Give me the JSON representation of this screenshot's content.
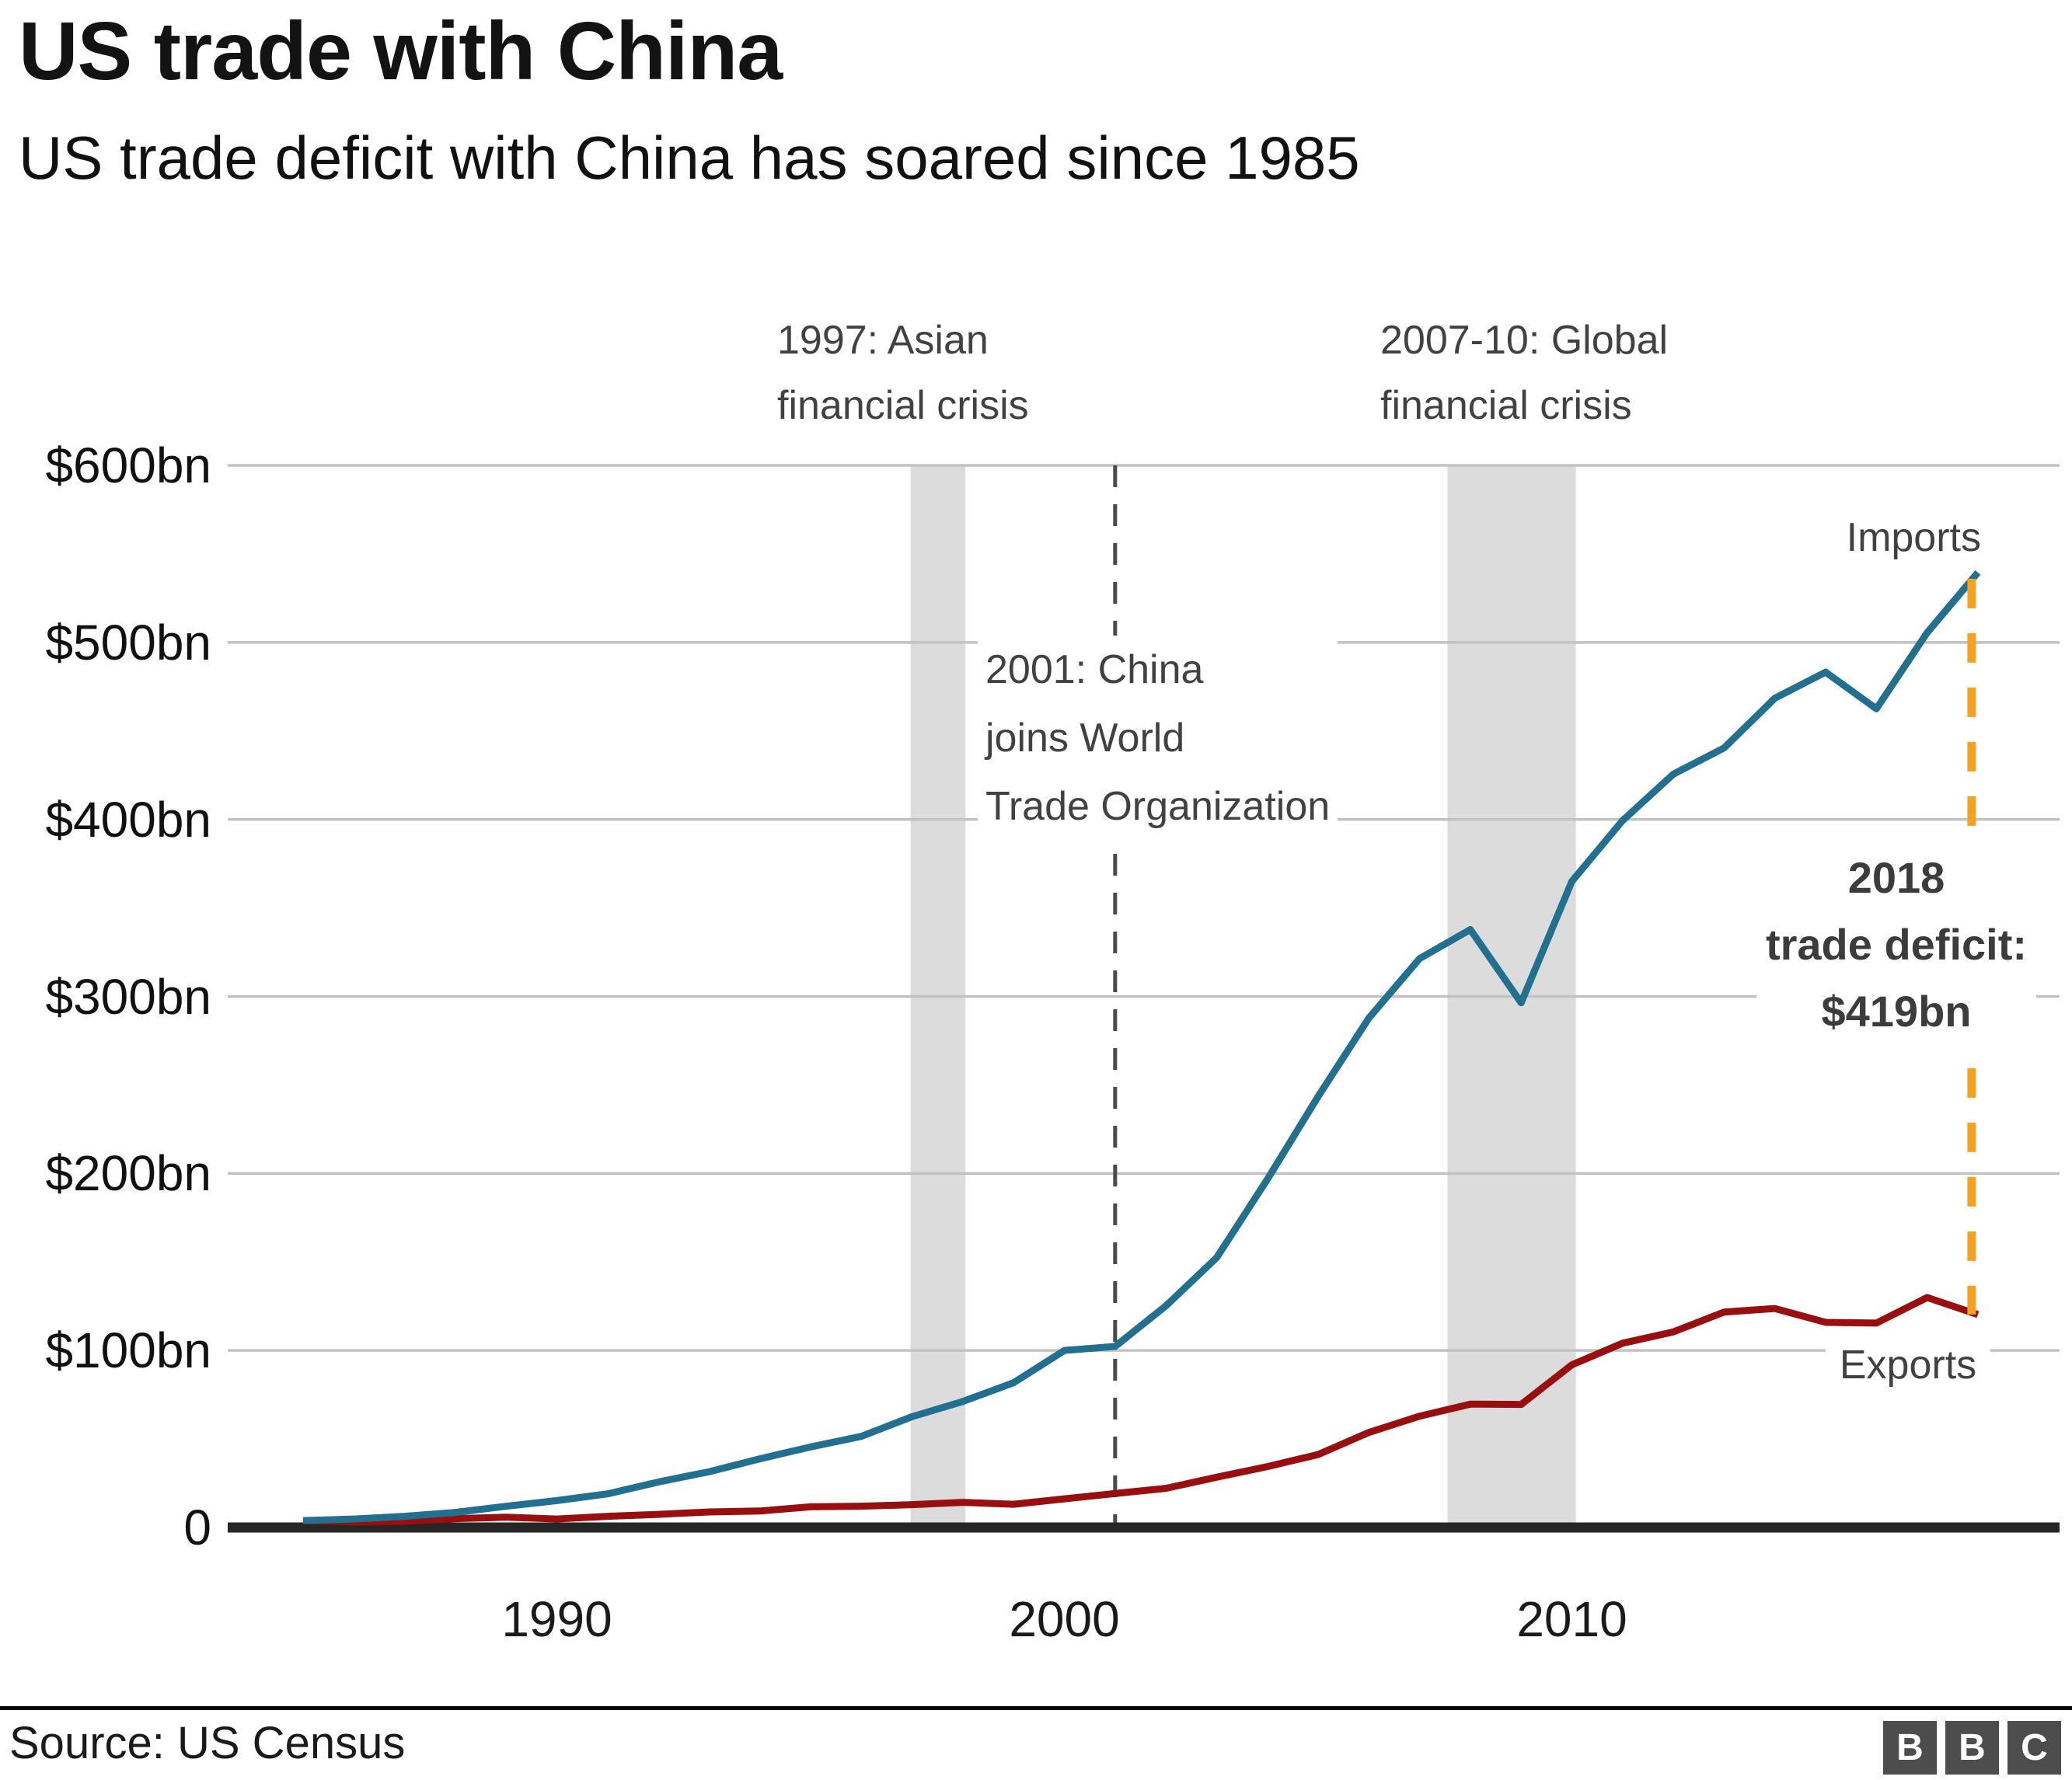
{
  "header": {
    "title": "US trade with China",
    "subtitle": "US trade deficit with China has soared since 1985"
  },
  "footer": {
    "source": "Source: US Census",
    "logo_letters": [
      "B",
      "B",
      "C"
    ]
  },
  "colors": {
    "imports_line": "#21708F",
    "exports_line": "#990F0F",
    "deficit_line": "#F7A21E",
    "band": "#DCDCDC",
    "gridline": "#C2C2C2",
    "axis": "#262626",
    "vline": "#4A4A4A",
    "annotation_text": "#414141",
    "logo_bg": "#4D4D4D"
  },
  "chart_data": {
    "type": "line",
    "title": "US trade with China",
    "subtitle": "US trade deficit with China has soared since 1985",
    "unit": "US$ billions",
    "grid": "horizontal",
    "ylim": [
      0,
      600
    ],
    "x": [
      1985,
      1986,
      1987,
      1988,
      1989,
      1990,
      1991,
      1992,
      1993,
      1994,
      1995,
      1996,
      1997,
      1998,
      1999,
      2000,
      2001,
      2002,
      2003,
      2004,
      2005,
      2006,
      2007,
      2008,
      2009,
      2010,
      2011,
      2012,
      2013,
      2014,
      2015,
      2016,
      2017,
      2018
    ],
    "series": [
      {
        "name": "Imports",
        "color": "#21708F",
        "values": [
          3.9,
          4.8,
          6.3,
          8.5,
          12.0,
          15.2,
          19.0,
          25.7,
          31.5,
          38.8,
          45.5,
          51.5,
          62.6,
          71.2,
          81.8,
          100.0,
          102.3,
          125.2,
          152.4,
          196.7,
          243.5,
          287.8,
          321.4,
          337.8,
          296.4,
          365.0,
          399.4,
          425.6,
          440.4,
          468.5,
          483.2,
          462.5,
          505.5,
          539.5
        ]
      },
      {
        "name": "Exports",
        "color": "#990F0F",
        "values": [
          3.9,
          3.1,
          3.5,
          5.0,
          5.8,
          4.8,
          6.3,
          7.4,
          8.8,
          9.3,
          11.7,
          12.0,
          12.9,
          14.2,
          13.1,
          16.2,
          19.2,
          22.1,
          28.4,
          34.4,
          41.2,
          53.7,
          62.9,
          69.7,
          69.5,
          91.9,
          104.1,
          110.5,
          121.7,
          123.7,
          115.9,
          115.5,
          129.9,
          120.3
        ]
      }
    ],
    "y_ticks": [
      {
        "value": 600,
        "label": "$600bn"
      },
      {
        "value": 500,
        "label": "$500bn"
      },
      {
        "value": 400,
        "label": "$400bn"
      },
      {
        "value": 300,
        "label": "$300bn"
      },
      {
        "value": 200,
        "label": "$200bn"
      },
      {
        "value": 100,
        "label": "$100bn"
      },
      {
        "value": 0,
        "label": "0"
      }
    ],
    "x_ticks": [
      {
        "value": 1990,
        "label": "1990"
      },
      {
        "value": 2000,
        "label": "2000"
      },
      {
        "value": 2010,
        "label": "2010"
      }
    ],
    "events": {
      "bands": [
        {
          "from": 1996.97,
          "to": 1998.05,
          "label_lines": [
            "1997: Asian",
            "financial crisis"
          ]
        },
        {
          "from": 2007.55,
          "to": 2010.08,
          "label_lines": [
            "2007-10: Global",
            "financial crisis"
          ]
        }
      ],
      "vline": {
        "year": 2001,
        "label_lines": [
          "2001: China",
          "joins World",
          "Trade Organization"
        ]
      },
      "deficit_marker": {
        "year": 2018,
        "imports": 539.5,
        "exports": 120.3,
        "label_lines": [
          "2018",
          "trade deficit:",
          "$419bn"
        ]
      }
    }
  }
}
